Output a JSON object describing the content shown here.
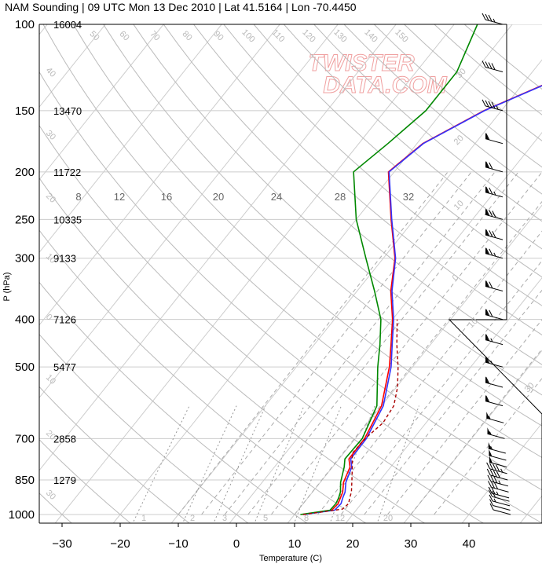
{
  "chart_data": {
    "type": "line",
    "title": "NAM Sounding | 09 UTC Mon 13 Dec 2010 | Lat 41.5164 | Lon -70.4450",
    "xlabel": "Temperature (C)",
    "ylabel": "P (hPa)",
    "xlim": [
      -35,
      47
    ],
    "ylim": [
      1000,
      100
    ],
    "y_scale": "log",
    "x_ticks": [
      -30,
      -20,
      -10,
      0,
      10,
      20,
      30,
      40
    ],
    "x_tick_labels": [
      "−30",
      "−20",
      "−10",
      "0",
      "10",
      "20",
      "30",
      "40"
    ],
    "pressure_levels": [
      100,
      150,
      200,
      250,
      300,
      400,
      500,
      700,
      850,
      1000
    ],
    "height_labels": [
      "16004",
      "13470",
      "11722",
      "10335",
      "9133",
      "7126",
      "5477",
      "2858",
      "1279"
    ],
    "height_levels": [
      100,
      150,
      200,
      250,
      300,
      400,
      500,
      700,
      850
    ],
    "mixing_ratio_labels": [
      "8",
      "12",
      "16",
      "20",
      "24",
      "28",
      "32"
    ],
    "mixing_ratio_bottom_labels": [
      "1",
      "2",
      "3",
      "5",
      "8",
      "12",
      "20"
    ],
    "isotherm_labels": [
      "50",
      "60",
      "70",
      "80",
      "90",
      "100",
      "110",
      "120",
      "130",
      "140",
      "150",
      "160",
      "180"
    ],
    "skew_labels_left": [
      "40",
      "30",
      "20",
      "10",
      "0",
      "10",
      "20",
      "30"
    ],
    "skew_labels_right": [
      "30",
      "20",
      "10",
      "0",
      "10",
      "30"
    ],
    "watermark": [
      "TWISTER",
      "DATA.COM"
    ],
    "series": [
      {
        "name": "temperature",
        "color": "#ff0000",
        "points": [
          [
            1000,
            11.2
          ],
          [
            980,
            15.8
          ],
          [
            950,
            16.0
          ],
          [
            925,
            15.6
          ],
          [
            900,
            15.2
          ],
          [
            860,
            14.0
          ],
          [
            800,
            13.0
          ],
          [
            770,
            11.7
          ],
          [
            700,
            11.6
          ],
          [
            600,
            10.0
          ],
          [
            500,
            6.0
          ],
          [
            450,
            3.2
          ],
          [
            400,
            0.0
          ],
          [
            350,
            -4.2
          ],
          [
            300,
            -8.0
          ],
          [
            250,
            -14.0
          ],
          [
            200,
            -21.0
          ],
          [
            175,
            -19.0
          ],
          [
            150,
            -13.0
          ],
          [
            125,
            -3.0
          ],
          [
            100,
            8.0
          ]
        ]
      },
      {
        "name": "virtual temperature",
        "color": "#3333ff",
        "points": [
          [
            1000,
            11.5
          ],
          [
            980,
            16.3
          ],
          [
            950,
            16.5
          ],
          [
            925,
            16.0
          ],
          [
            900,
            15.6
          ],
          [
            860,
            14.4
          ],
          [
            800,
            13.3
          ],
          [
            770,
            12.0
          ],
          [
            700,
            11.9
          ],
          [
            600,
            10.3
          ],
          [
            500,
            6.3
          ],
          [
            450,
            3.4
          ],
          [
            400,
            0.2
          ],
          [
            350,
            -4.0
          ],
          [
            300,
            -7.9
          ],
          [
            250,
            -13.9
          ],
          [
            200,
            -20.9
          ],
          [
            175,
            -18.9
          ],
          [
            150,
            -12.9
          ],
          [
            125,
            -2.9
          ],
          [
            100,
            8.1
          ]
        ]
      },
      {
        "name": "dewpoint",
        "color": "#008800",
        "points": [
          [
            1000,
            11.0
          ],
          [
            980,
            15.5
          ],
          [
            950,
            15.6
          ],
          [
            925,
            15.3
          ],
          [
            900,
            14.8
          ],
          [
            860,
            13.5
          ],
          [
            800,
            12.0
          ],
          [
            770,
            11.0
          ],
          [
            700,
            11.2
          ],
          [
            600,
            9.2
          ],
          [
            500,
            4.0
          ],
          [
            450,
            1.3
          ],
          [
            400,
            -2.0
          ],
          [
            350,
            -7.0
          ],
          [
            300,
            -13.0
          ],
          [
            250,
            -20.0
          ],
          [
            200,
            -27.0
          ],
          [
            175,
            -25.0
          ],
          [
            150,
            -23.0
          ],
          [
            125,
            -23.0
          ],
          [
            100,
            -26.0
          ]
        ]
      },
      {
        "name": "parcel",
        "color": "#aa0000",
        "dashed": true,
        "points": [
          [
            1000,
            11.5
          ],
          [
            975,
            17.5
          ],
          [
            950,
            17.8
          ],
          [
            925,
            17.2
          ],
          [
            900,
            16.7
          ],
          [
            850,
            15.1
          ],
          [
            800,
            13.4
          ],
          [
            750,
            11.5
          ],
          [
            700,
            11.7
          ],
          [
            650,
            12.6
          ],
          [
            600,
            12.1
          ],
          [
            550,
            10.2
          ],
          [
            500,
            7.5
          ],
          [
            450,
            4.2
          ],
          [
            400,
            0.8
          ]
        ]
      }
    ],
    "wind_levels": [
      1000,
      980,
      960,
      940,
      925,
      900,
      875,
      850,
      825,
      800,
      775,
      750,
      700,
      650,
      600,
      550,
      500,
      450,
      400,
      350,
      300,
      275,
      250,
      225,
      200,
      175,
      150,
      125,
      100
    ],
    "wind_speeds_kt": [
      10,
      12,
      15,
      20,
      25,
      30,
      35,
      40,
      45,
      50,
      50,
      55,
      55,
      55,
      60,
      60,
      65,
      65,
      70,
      70,
      75,
      80,
      80,
      75,
      70,
      60,
      45,
      40,
      35
    ],
    "grid": true,
    "colors": {
      "grid": "#cccccc",
      "dry_adiabat": "#bbbbbb",
      "moist_adiabat": "#aaaaaa",
      "mixing_ratio": "#999999"
    }
  }
}
